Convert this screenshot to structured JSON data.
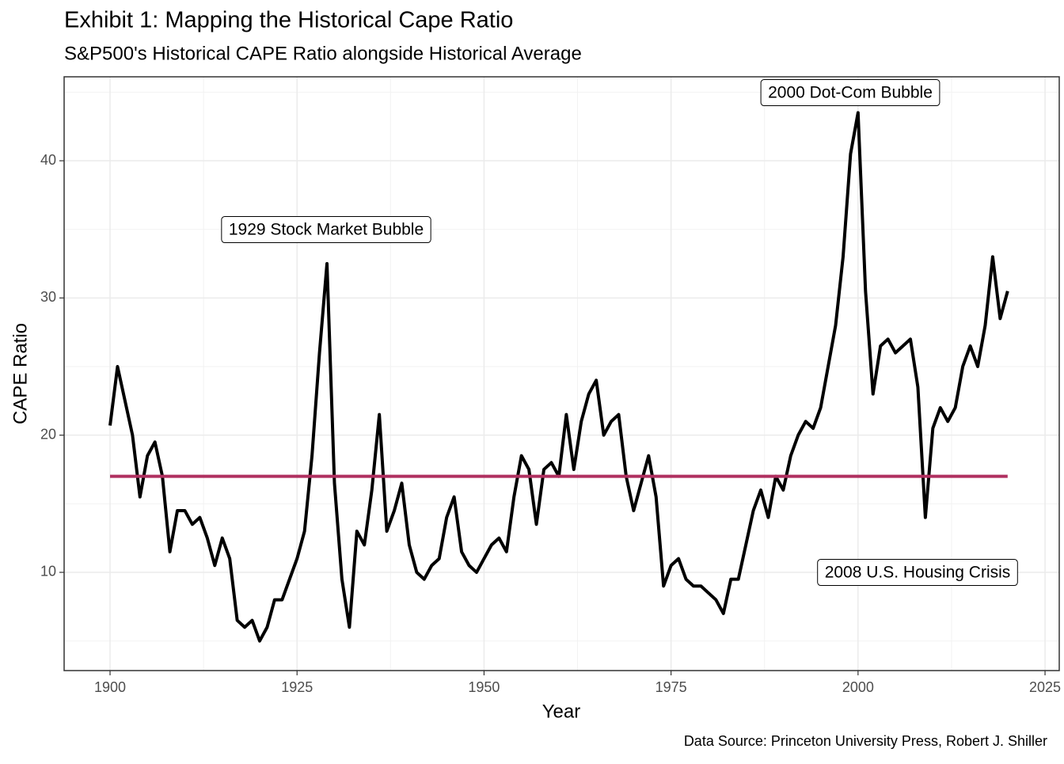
{
  "chart_data": {
    "type": "line",
    "title": "Exhibit 1: Mapping the Historical Cape Ratio",
    "subtitle": "S&P500's Historical CAPE Ratio alongside Historical Average",
    "x_label": "Year",
    "y_label": "CAPE Ratio",
    "caption": "Data Source: Princeton University Press, Robert J. Shiller",
    "annotations": [
      "1929 Stock Market Bubble",
      "2000 Dot-Com Bubble",
      "2008 U.S. Housing Crisis"
    ],
    "x": [
      1900,
      1901,
      1902,
      1903,
      1904,
      1905,
      1906,
      1907,
      1908,
      1909,
      1910,
      1911,
      1912,
      1913,
      1914,
      1915,
      1916,
      1917,
      1918,
      1919,
      1920,
      1921,
      1922,
      1923,
      1924,
      1925,
      1926,
      1927,
      1928,
      1929,
      1930,
      1931,
      1932,
      1933,
      1934,
      1935,
      1936,
      1937,
      1938,
      1939,
      1940,
      1941,
      1942,
      1943,
      1944,
      1945,
      1946,
      1947,
      1948,
      1949,
      1950,
      1951,
      1952,
      1953,
      1954,
      1955,
      1956,
      1957,
      1958,
      1959,
      1960,
      1961,
      1962,
      1963,
      1964,
      1965,
      1966,
      1967,
      1968,
      1969,
      1970,
      1971,
      1972,
      1973,
      1974,
      1975,
      1976,
      1977,
      1978,
      1979,
      1980,
      1981,
      1982,
      1983,
      1984,
      1985,
      1986,
      1987,
      1988,
      1989,
      1990,
      1991,
      1992,
      1993,
      1994,
      1995,
      1996,
      1997,
      1998,
      1999,
      2000,
      2001,
      2002,
      2003,
      2004,
      2005,
      2006,
      2007,
      2008,
      2009,
      2010,
      2011,
      2012,
      2013,
      2014,
      2015,
      2016,
      2017,
      2018,
      2019,
      2020
    ],
    "series": [
      {
        "color": "#000000",
        "values": [
          20.7,
          25,
          22.5,
          20,
          15.5,
          18.5,
          19.5,
          17,
          11.5,
          14.5,
          14.5,
          13.5,
          14,
          12.5,
          10.5,
          12.5,
          11,
          6.5,
          6,
          6.5,
          5,
          6,
          8,
          8,
          9.5,
          11,
          13,
          18.5,
          26,
          32.5,
          16.5,
          9.5,
          6,
          13,
          12,
          16,
          21.5,
          13,
          14.5,
          16.5,
          12,
          10,
          9.5,
          10.5,
          11,
          14,
          15.5,
          11.5,
          10.5,
          10,
          11,
          12,
          12.5,
          11.5,
          15.5,
          18.5,
          17.5,
          13.5,
          17.5,
          18,
          17,
          21.5,
          17.5,
          21,
          23,
          24,
          20,
          21,
          21.5,
          17,
          14.5,
          16.5,
          18.5,
          15.5,
          9,
          10.5,
          11,
          9.5,
          9,
          9,
          8.5,
          8,
          7,
          9.5,
          9.5,
          12,
          14.5,
          16,
          14,
          17,
          16,
          18.5,
          20,
          21,
          20.5,
          22,
          25,
          28,
          33,
          40.5,
          43.5,
          30.5,
          23,
          26.5,
          27,
          26,
          26.5,
          27,
          23.5,
          14,
          20.5,
          22,
          21,
          22,
          25,
          26.5,
          25,
          28,
          33,
          28.5,
          30.5
        ]
      }
    ],
    "reference_line": {
      "value": 17,
      "color": "#b03060"
    },
    "xlim": [
      1893.86,
      2026.9
    ],
    "ylim": [
      2.84,
      46.12
    ],
    "xticks": [
      1900,
      1925,
      1950,
      1975,
      2000,
      2025
    ],
    "yticks": [
      10,
      20,
      30,
      40
    ],
    "grid": true
  }
}
